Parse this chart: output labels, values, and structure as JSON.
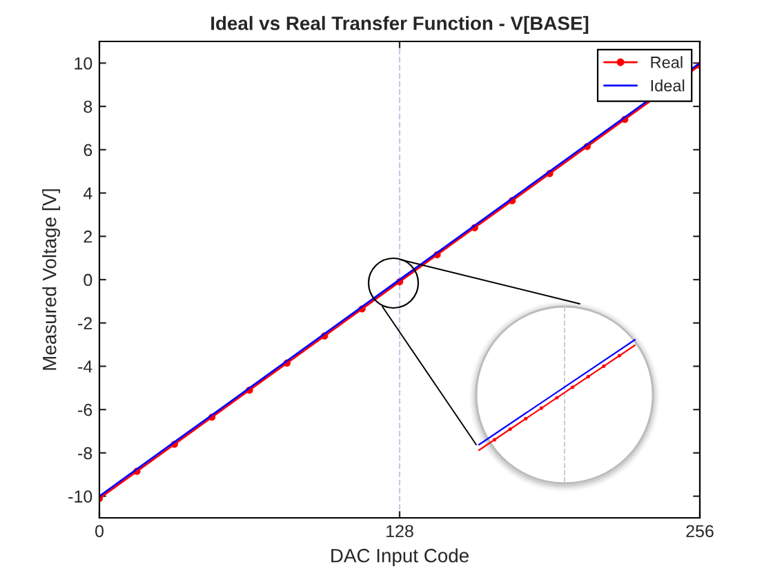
{
  "chart_data": {
    "type": "line",
    "title": "Ideal vs Real Transfer Function - V[BASE]",
    "xlabel": "DAC Input Code",
    "ylabel": "Measured Voltage [V]",
    "x": [
      0,
      16,
      32,
      48,
      64,
      80,
      96,
      112,
      128,
      144,
      160,
      176,
      192,
      208,
      224,
      256
    ],
    "series": [
      {
        "name": "Real",
        "color": "#ff0000",
        "marker": "circle",
        "values": [
          -10.1,
          -8.85,
          -7.6,
          -6.35,
          -5.1,
          -3.85,
          -2.6,
          -1.35,
          -0.1,
          1.15,
          2.4,
          3.65,
          4.9,
          6.15,
          7.4,
          9.9
        ]
      },
      {
        "name": "Ideal",
        "color": "#0000ff",
        "values": [
          -10,
          -8.75,
          -7.5,
          -6.25,
          -5,
          -3.75,
          -2.5,
          -1.25,
          0,
          1.25,
          2.5,
          3.75,
          5,
          6.25,
          7.5,
          10
        ]
      }
    ],
    "xlim": [
      0,
      256
    ],
    "xticks": [
      0,
      128,
      256
    ],
    "ylim": [
      -11,
      11
    ],
    "yticks": [
      -10,
      -8,
      -6,
      -4,
      -2,
      0,
      2,
      4,
      6,
      8,
      10
    ],
    "ref_lines": [
      {
        "axis": "x",
        "value": 128,
        "color": "#c8c8e6",
        "line_style": "dashed"
      }
    ],
    "grid": false,
    "legend": "top right",
    "line_style": "solid"
  }
}
